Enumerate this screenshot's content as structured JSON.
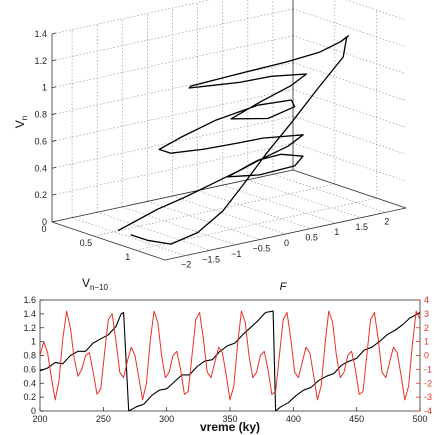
{
  "chart_data": [
    {
      "type": "line3d",
      "axes": {
        "x": {
          "label_main": "V",
          "label_sub": "n−10",
          "ticks": [
            "0",
            "0.5",
            "1"
          ],
          "range": [
            0,
            1.35
          ]
        },
        "y": {
          "label": "F",
          "ticks": [
            "−2",
            "−1.5",
            "−1",
            "−0.5",
            "0",
            "0.5",
            "1",
            "1.5",
            "2"
          ],
          "range": [
            -2.4,
            2.4
          ]
        },
        "z": {
          "label_main": "V",
          "label_sub": "n",
          "ticks": [
            "0",
            "0.2",
            "0.4",
            "0.6",
            "0.8",
            "1",
            "1.2",
            "1.4"
          ],
          "range": [
            0,
            1.4
          ]
        }
      },
      "grid": true,
      "series": [
        {
          "color": "#000000",
          "points": [
            [
              0.55,
              -2.0,
              0.02
            ],
            [
              0.5,
              -1.6,
              0.04
            ],
            [
              0.42,
              -1.0,
              0.07
            ],
            [
              0.32,
              -0.3,
              0.08
            ],
            [
              0.22,
              0.4,
              0.1
            ],
            [
              0.12,
              1.1,
              0.12
            ],
            [
              0.06,
              1.6,
              0.15
            ],
            [
              0.1,
              2.0,
              0.17
            ],
            [
              0.3,
              2.1,
              0.19
            ],
            [
              0.5,
              1.6,
              0.2
            ],
            [
              0.56,
              0.8,
              0.21
            ],
            [
              0.54,
              0.2,
              0.24
            ],
            [
              0.48,
              0.9,
              0.29
            ],
            [
              0.42,
              1.6,
              0.33
            ],
            [
              0.36,
              2.0,
              0.37
            ],
            [
              0.36,
              1.2,
              0.41
            ],
            [
              0.44,
              0.6,
              0.44
            ],
            [
              0.5,
              -0.2,
              0.47
            ],
            [
              0.52,
              -0.9,
              0.5
            ],
            [
              0.44,
              -1.0,
              0.52
            ],
            [
              0.3,
              -0.3,
              0.53
            ],
            [
              0.16,
              0.6,
              0.55
            ],
            [
              0.12,
              1.5,
              0.58
            ],
            [
              0.22,
              2.0,
              0.6
            ],
            [
              0.44,
              1.7,
              0.62
            ],
            [
              0.6,
              0.9,
              0.63
            ],
            [
              0.52,
              0.3,
              0.66
            ],
            [
              0.46,
              1.0,
              0.72
            ],
            [
              0.4,
              1.7,
              0.77
            ],
            [
              0.34,
              2.1,
              0.81
            ],
            [
              0.34,
              1.4,
              0.85
            ],
            [
              0.44,
              0.6,
              0.89
            ],
            [
              0.5,
              0.0,
              0.93
            ],
            [
              0.56,
              -0.6,
              0.97
            ],
            [
              0.7,
              -0.8,
              1.03
            ],
            [
              0.86,
              -0.7,
              1.09
            ],
            [
              1.0,
              -0.2,
              1.15
            ],
            [
              1.12,
              0.4,
              1.2
            ],
            [
              1.15,
              1.0,
              1.23
            ],
            [
              1.05,
              1.6,
              1.24
            ],
            [
              0.9,
              2.0,
              1.22
            ],
            [
              0.76,
              2.2,
              1.16
            ],
            [
              0.84,
              2.0,
              1.05
            ],
            [
              0.96,
              1.3,
              0.9
            ],
            [
              1.06,
              0.6,
              0.72
            ],
            [
              1.12,
              0.0,
              0.55
            ],
            [
              1.16,
              -0.5,
              0.38
            ],
            [
              1.2,
              -1.0,
              0.22
            ],
            [
              1.2,
              -1.5,
              0.1
            ],
            [
              1.12,
              -1.9,
              0.03
            ],
            [
              0.9,
              -2.0,
              0.02
            ],
            [
              0.7,
              -2.0,
              0.02
            ]
          ]
        }
      ]
    },
    {
      "type": "line",
      "x_range": [
        200,
        500
      ],
      "xlabel": "vreme (ky)",
      "x_ticks": [
        200,
        250,
        300,
        350,
        400,
        450,
        500
      ],
      "y_left": {
        "range": [
          0,
          1.6
        ],
        "ticks": [
          "0",
          "0.2",
          "0.4",
          "0.6",
          "0.8",
          "1",
          "1.2",
          "1.4",
          "1.6"
        ]
      },
      "y_right": {
        "range": [
          -4,
          4
        ],
        "ticks": [
          "-4",
          "-3",
          "-2",
          "-1",
          "0",
          "1",
          "2",
          "3",
          "4"
        ],
        "color": "#e8312b"
      },
      "series": [
        {
          "axis": "left",
          "color": "#000000",
          "x": [
            200,
            206,
            212,
            218,
            224,
            230,
            236,
            242,
            248,
            254,
            260,
            264,
            266,
            270,
            276,
            282,
            288,
            294,
            300,
            306,
            312,
            318,
            324,
            330,
            336,
            342,
            348,
            354,
            360,
            366,
            372,
            378,
            384,
            386,
            390,
            396,
            402,
            408,
            414,
            420,
            426,
            432,
            438,
            444,
            450,
            456,
            462,
            468,
            474,
            480,
            486,
            492,
            498,
            500
          ],
          "y": [
            0.58,
            0.62,
            0.7,
            0.68,
            0.8,
            0.86,
            0.86,
            0.98,
            1.04,
            1.1,
            1.22,
            1.4,
            1.42,
            0.0,
            0.06,
            0.1,
            0.22,
            0.3,
            0.32,
            0.42,
            0.52,
            0.52,
            0.64,
            0.72,
            0.74,
            0.86,
            0.94,
            0.98,
            1.1,
            1.2,
            1.3,
            1.42,
            1.44,
            0.0,
            0.06,
            0.12,
            0.22,
            0.3,
            0.34,
            0.44,
            0.5,
            0.54,
            0.66,
            0.72,
            0.76,
            0.88,
            0.92,
            1.0,
            1.1,
            1.16,
            1.24,
            1.34,
            1.4,
            1.42
          ]
        },
        {
          "axis": "right",
          "color": "#e8312b",
          "x": [
            200,
            203,
            206,
            209,
            212,
            215,
            218,
            221,
            224,
            227,
            230,
            233,
            236,
            239,
            242,
            245,
            248,
            251,
            254,
            257,
            260,
            263,
            266,
            269,
            272,
            275,
            278,
            281,
            284,
            287,
            290,
            293,
            296,
            299,
            302,
            305,
            308,
            311,
            314,
            317,
            320,
            323,
            326,
            329,
            332,
            335,
            338,
            341,
            344,
            347,
            350,
            353,
            356,
            359,
            362,
            365,
            368,
            371,
            374,
            377,
            380,
            383,
            386,
            389,
            392,
            395,
            398,
            401,
            404,
            407,
            410,
            413,
            416,
            419,
            422,
            425,
            428,
            431,
            434,
            437,
            440,
            443,
            446,
            449,
            452,
            455,
            458,
            461,
            464,
            467,
            470,
            473,
            476,
            479,
            482,
            485,
            488,
            491,
            494,
            497,
            500
          ],
          "y": [
            0.0,
            1.0,
            0.2,
            -1.6,
            -3.2,
            -1.8,
            1.2,
            3.2,
            2.0,
            -0.2,
            -1.5,
            -1.0,
            0.0,
            0.2,
            -1.2,
            -2.8,
            -2.4,
            0.2,
            2.6,
            3.0,
            1.0,
            -1.2,
            -1.6,
            -0.4,
            0.6,
            0.0,
            -1.6,
            -3.2,
            -2.0,
            1.0,
            3.2,
            2.4,
            0.0,
            -1.6,
            -1.2,
            0.0,
            0.3,
            -1.0,
            -2.8,
            -2.6,
            0.0,
            2.6,
            3.1,
            1.2,
            -1.2,
            -1.6,
            -0.5,
            0.6,
            0.2,
            -1.4,
            -3.2,
            -2.2,
            0.8,
            3.2,
            2.4,
            0.0,
            -1.6,
            -1.2,
            0.0,
            0.3,
            -1.0,
            -2.8,
            -2.6,
            0.0,
            2.6,
            3.1,
            1.2,
            -1.2,
            -1.6,
            -0.5,
            0.6,
            0.2,
            -1.4,
            -3.2,
            -2.2,
            0.8,
            3.2,
            2.4,
            0.0,
            -1.6,
            -1.2,
            0.0,
            0.3,
            -1.0,
            -2.8,
            -2.6,
            0.0,
            2.6,
            3.1,
            1.2,
            -1.2,
            -1.6,
            -0.5,
            0.6,
            0.2,
            -1.4,
            -3.2,
            -2.2,
            0.8,
            3.2,
            2.6
          ]
        }
      ]
    }
  ]
}
